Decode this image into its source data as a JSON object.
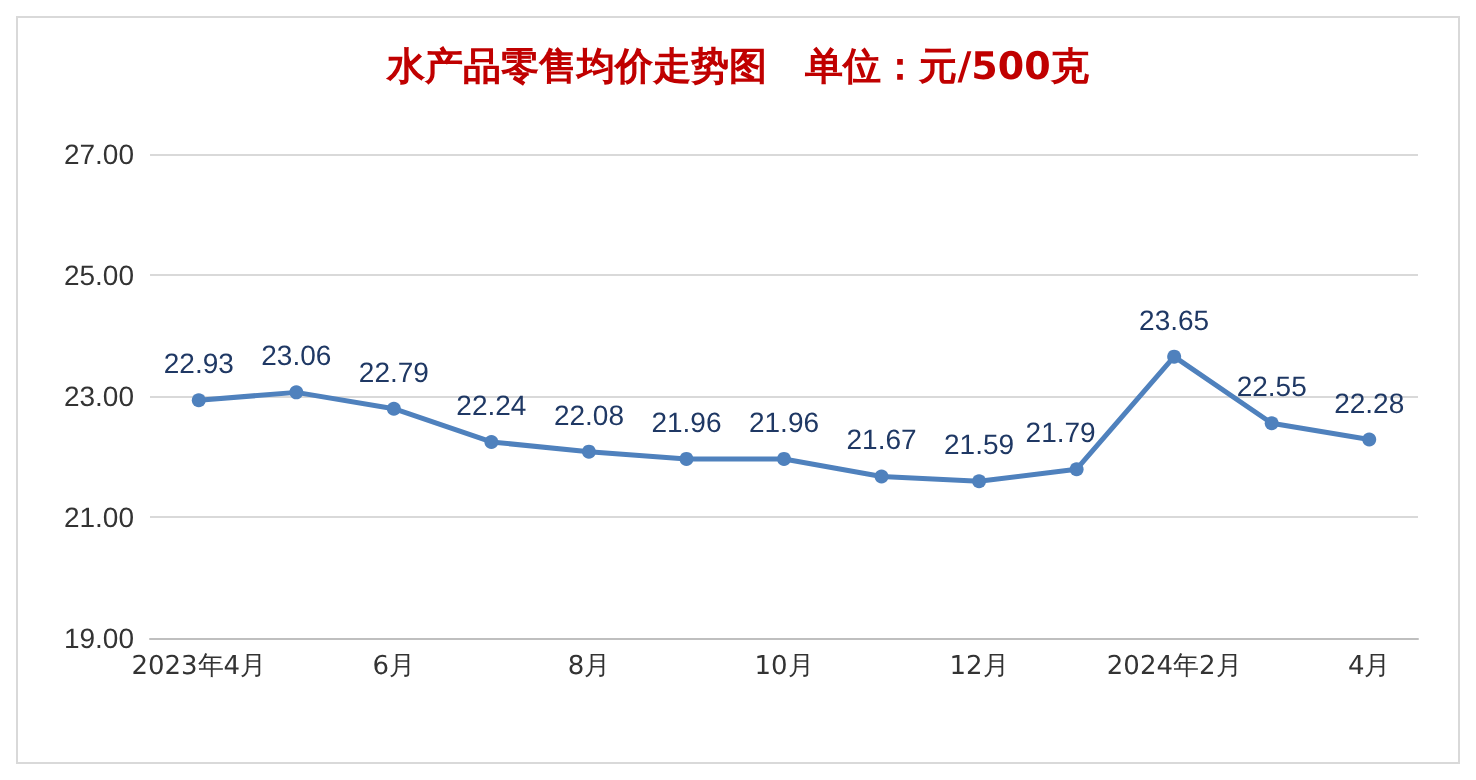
{
  "chart_data": {
    "type": "line",
    "title": "水产品零售均价走势图　单位：元/500克",
    "categories": [
      "2023年4月",
      null,
      "6月",
      null,
      "8月",
      null,
      "10月",
      null,
      "12月",
      null,
      "2024年2月",
      null,
      "4月"
    ],
    "series": [
      {
        "color": "#4f81bd",
        "values": [
          22.93,
          23.06,
          22.79,
          22.24,
          22.08,
          21.96,
          21.96,
          21.67,
          21.59,
          21.79,
          23.65,
          22.55,
          22.28
        ]
      }
    ],
    "ylim": [
      19,
      27
    ],
    "yticks": [
      {
        "value": 19,
        "label": "19.00"
      },
      {
        "value": 21,
        "label": "21.00"
      },
      {
        "value": 23,
        "label": "23.00"
      },
      {
        "value": 25,
        "label": "25.00"
      },
      {
        "value": 27,
        "label": "27.00"
      }
    ],
    "grid": "y",
    "marker": "circle",
    "line_style": "solid",
    "data_labels": true
  }
}
